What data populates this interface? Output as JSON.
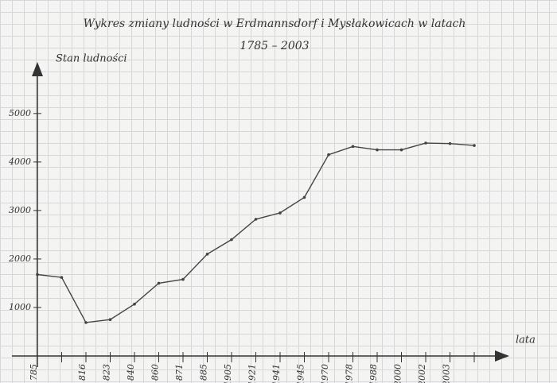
{
  "chart_data": {
    "type": "line",
    "title": "Wykres zmiany ludności w Erdmannsdorf i Mysłakowicach w latach",
    "subtitle": "1785 – 2003",
    "y_label": "Stan ludności",
    "x_label": "lata",
    "categories": [
      "785",
      null,
      "816",
      "823",
      "840",
      "860",
      "871",
      "885",
      "1905",
      "1921",
      "1941",
      "1945",
      "1970",
      "1978",
      "1988",
      "2000",
      "2002",
      "2003",
      null
    ],
    "values": [
      1680,
      1620,
      690,
      750,
      1070,
      1500,
      1580,
      2100,
      2400,
      2820,
      2950,
      3270,
      4150,
      4320,
      4250,
      4250,
      4390,
      4380,
      4340
    ],
    "color": "#444444",
    "ylim": [
      0,
      5800
    ],
    "yticks": [
      1000,
      2000,
      3000,
      4000,
      5000
    ]
  }
}
